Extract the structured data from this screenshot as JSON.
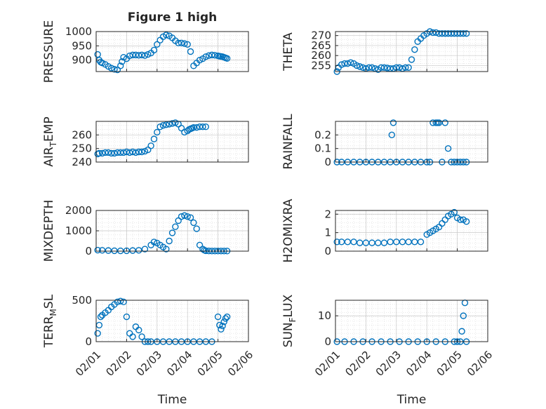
{
  "figure": {
    "title": "Figure 1 high",
    "marker_color": "#0072BD"
  },
  "chart_data": [
    {
      "id": "pressure",
      "type": "scatter",
      "title": "Figure 1 high",
      "ylabel": {
        "main": "PRESSURE"
      },
      "xlabel": "",
      "xlim": [
        0,
        5
      ],
      "ylim": [
        860,
        1000
      ],
      "yticks": [
        900,
        950,
        1000
      ],
      "xtick_labels": [],
      "x": [
        0.05,
        0.1,
        0.15,
        0.2,
        0.3,
        0.4,
        0.5,
        0.6,
        0.7,
        0.8,
        0.85,
        0.9,
        1.0,
        1.1,
        1.2,
        1.3,
        1.4,
        1.5,
        1.6,
        1.7,
        1.8,
        1.9,
        2.0,
        2.1,
        2.2,
        2.3,
        2.4,
        2.5,
        2.6,
        2.7,
        2.8,
        2.9,
        3.0,
        3.1,
        3.2,
        3.3,
        3.4,
        3.5,
        3.6,
        3.7,
        3.8,
        3.9,
        4.0,
        4.05,
        4.1,
        4.15,
        4.2,
        4.25,
        4.3
      ],
      "y": [
        920,
        900,
        893,
        890,
        885,
        878,
        872,
        868,
        866,
        880,
        895,
        910,
        905,
        915,
        918,
        918,
        917,
        918,
        916,
        920,
        925,
        935,
        955,
        970,
        982,
        988,
        985,
        978,
        968,
        960,
        960,
        958,
        955,
        930,
        880,
        890,
        900,
        905,
        912,
        916,
        918,
        917,
        915,
        914,
        913,
        912,
        910,
        908,
        906
      ]
    },
    {
      "id": "theta",
      "type": "scatter",
      "ylabel": {
        "main": "THETA"
      },
      "xlabel": "",
      "xlim": [
        0,
        5
      ],
      "ylim": [
        252,
        272
      ],
      "yticks": [
        255,
        260,
        265,
        270
      ],
      "xtick_labels": [],
      "x": [
        0.05,
        0.1,
        0.2,
        0.3,
        0.4,
        0.5,
        0.6,
        0.7,
        0.8,
        0.9,
        1.0,
        1.1,
        1.2,
        1.3,
        1.4,
        1.5,
        1.6,
        1.7,
        1.8,
        1.9,
        2.0,
        2.1,
        2.2,
        2.3,
        2.4,
        2.5,
        2.6,
        2.7,
        2.8,
        2.9,
        3.0,
        3.1,
        3.2,
        3.3,
        3.4,
        3.5,
        3.6,
        3.7,
        3.8,
        3.9,
        4.0,
        4.1,
        4.2,
        4.3
      ],
      "y": [
        252,
        254,
        255.5,
        256,
        256,
        256.5,
        256,
        255,
        254.5,
        254,
        253.5,
        254,
        254,
        253.5,
        253,
        254,
        254,
        253.8,
        253.5,
        253.5,
        254,
        254,
        253.5,
        254,
        254,
        258,
        263,
        267,
        268.5,
        270,
        271,
        272,
        271.5,
        271.5,
        271,
        271,
        271,
        271,
        271,
        271,
        271,
        271,
        271,
        271
      ]
    },
    {
      "id": "air_temp",
      "type": "scatter",
      "ylabel": {
        "main": "AIR",
        "sub": "T",
        "tail": "EMP"
      },
      "xlabel": "",
      "xlim": [
        0,
        5
      ],
      "ylim": [
        240,
        270
      ],
      "yticks": [
        240,
        250,
        260
      ],
      "xtick_labels": [],
      "x": [
        0.05,
        0.1,
        0.2,
        0.3,
        0.4,
        0.5,
        0.6,
        0.7,
        0.8,
        0.9,
        1.0,
        1.1,
        1.2,
        1.3,
        1.4,
        1.5,
        1.6,
        1.7,
        1.8,
        1.9,
        2.0,
        2.1,
        2.2,
        2.3,
        2.4,
        2.5,
        2.6,
        2.7,
        2.8,
        2.9,
        3.0,
        3.05,
        3.1,
        3.15,
        3.2,
        3.3,
        3.4,
        3.5,
        3.6
      ],
      "y": [
        246,
        246.5,
        246.5,
        247,
        247,
        246.5,
        246.5,
        247,
        247,
        247,
        247.5,
        247,
        247.5,
        247,
        247.5,
        247.5,
        248,
        249,
        252,
        257,
        262,
        266,
        267,
        267.5,
        268,
        268.5,
        269,
        268,
        265,
        262,
        263,
        264,
        264.5,
        265,
        265.5,
        265.5,
        266,
        266,
        266
      ]
    },
    {
      "id": "rainfall",
      "type": "scatter",
      "ylabel": {
        "main": "RAINFALL"
      },
      "xlabel": "",
      "xlim": [
        0,
        5
      ],
      "ylim": [
        0,
        0.3
      ],
      "yticks": [
        0,
        0.1,
        0.2
      ],
      "xtick_labels": [],
      "x": [
        0.05,
        0.2,
        0.4,
        0.6,
        0.8,
        1.0,
        1.2,
        1.4,
        1.6,
        1.8,
        1.85,
        1.9,
        2.0,
        2.2,
        2.4,
        2.6,
        2.8,
        3.0,
        3.1,
        3.2,
        3.3,
        3.35,
        3.4,
        3.5,
        3.6,
        3.7,
        3.8,
        3.9,
        4.0,
        4.1,
        4.2,
        4.3
      ],
      "y": [
        0,
        0,
        0,
        0,
        0,
        0,
        0,
        0,
        0,
        0,
        0.2,
        0.29,
        0,
        0,
        0,
        0,
        0,
        0,
        0,
        0.29,
        0.29,
        0.29,
        0.29,
        0,
        0.29,
        0.1,
        0,
        0,
        0,
        0,
        0,
        0
      ]
    },
    {
      "id": "mixdepth",
      "type": "scatter",
      "ylabel": {
        "main": "MIXDEPTH"
      },
      "xlabel": "",
      "xlim": [
        0,
        5
      ],
      "ylim": [
        0,
        2000
      ],
      "yticks": [
        0,
        1000,
        2000
      ],
      "xtick_labels": [],
      "x": [
        0.05,
        0.2,
        0.4,
        0.6,
        0.8,
        1.0,
        1.2,
        1.4,
        1.6,
        1.8,
        1.9,
        2.0,
        2.1,
        2.2,
        2.3,
        2.4,
        2.5,
        2.6,
        2.7,
        2.8,
        2.9,
        3.0,
        3.1,
        3.2,
        3.3,
        3.4,
        3.5,
        3.55,
        3.6,
        3.7,
        3.8,
        3.9,
        4.0,
        4.1,
        4.2,
        4.3
      ],
      "y": [
        50,
        40,
        30,
        20,
        15,
        20,
        30,
        40,
        100,
        300,
        450,
        400,
        300,
        200,
        100,
        500,
        900,
        1200,
        1500,
        1700,
        1750,
        1700,
        1650,
        1400,
        1100,
        300,
        100,
        50,
        20,
        10,
        5,
        5,
        5,
        5,
        5,
        5
      ]
    },
    {
      "id": "h2omixra",
      "type": "scatter",
      "ylabel": {
        "main": "H2OMIXRA"
      },
      "xlabel": "",
      "xlim": [
        0,
        5
      ],
      "ylim": [
        0,
        2.2
      ],
      "yticks": [
        0,
        1,
        2
      ],
      "xtick_labels": [],
      "x": [
        0.05,
        0.2,
        0.4,
        0.6,
        0.8,
        1.0,
        1.2,
        1.4,
        1.6,
        1.8,
        2.0,
        2.2,
        2.4,
        2.6,
        2.8,
        3.0,
        3.1,
        3.2,
        3.3,
        3.4,
        3.5,
        3.6,
        3.7,
        3.8,
        3.9,
        4.0,
        4.1,
        4.2,
        4.3
      ],
      "y": [
        0.5,
        0.5,
        0.5,
        0.5,
        0.45,
        0.45,
        0.45,
        0.45,
        0.45,
        0.5,
        0.5,
        0.5,
        0.5,
        0.5,
        0.5,
        0.9,
        1.0,
        1.1,
        1.2,
        1.3,
        1.5,
        1.7,
        1.9,
        2.0,
        2.1,
        1.8,
        1.7,
        1.7,
        1.6
      ]
    },
    {
      "id": "terr_msl",
      "type": "scatter",
      "ylabel": {
        "main": "TERR",
        "sub": "M",
        "tail": "SL"
      },
      "xlabel": "Time",
      "xlim": [
        0,
        5
      ],
      "ylim": [
        0,
        500
      ],
      "yticks": [
        0,
        500
      ],
      "xtick_labels": [
        "02/01",
        "02/02",
        "02/03",
        "02/04",
        "02/05",
        "02/06"
      ],
      "x": [
        0.05,
        0.1,
        0.15,
        0.2,
        0.3,
        0.4,
        0.5,
        0.6,
        0.7,
        0.8,
        0.9,
        1.0,
        1.1,
        1.2,
        1.3,
        1.4,
        1.5,
        1.6,
        1.7,
        1.8,
        2.0,
        2.2,
        2.4,
        2.6,
        2.8,
        3.0,
        3.2,
        3.4,
        3.6,
        3.8,
        4.0,
        4.05,
        4.1,
        4.15,
        4.2,
        4.25,
        4.3
      ],
      "y": [
        100,
        200,
        300,
        320,
        350,
        380,
        420,
        450,
        480,
        490,
        480,
        300,
        100,
        60,
        180,
        140,
        60,
        0,
        0,
        0,
        0,
        0,
        0,
        0,
        0,
        0,
        0,
        0,
        0,
        0,
        300,
        200,
        150,
        190,
        240,
        280,
        300
      ]
    },
    {
      "id": "sun_flux",
      "type": "scatter",
      "ylabel": {
        "main": "SUN",
        "sub": "F",
        "tail": "LUX"
      },
      "xlabel": "Time",
      "xlim": [
        0,
        5
      ],
      "ylim": [
        0,
        16
      ],
      "yticks": [
        0,
        10
      ],
      "xtick_labels": [
        "02/01",
        "02/02",
        "02/03",
        "02/04",
        "02/05",
        "02/06"
      ],
      "x": [
        0.05,
        0.3,
        0.6,
        0.9,
        1.2,
        1.5,
        1.8,
        2.1,
        2.4,
        2.7,
        3.0,
        3.3,
        3.6,
        3.9,
        4.0,
        4.1,
        4.15,
        4.2,
        4.25,
        4.3
      ],
      "y": [
        0,
        0,
        0,
        0,
        0,
        0,
        0,
        0,
        0,
        0,
        0,
        0,
        0,
        0,
        0,
        0,
        4,
        10,
        15,
        0
      ]
    }
  ]
}
